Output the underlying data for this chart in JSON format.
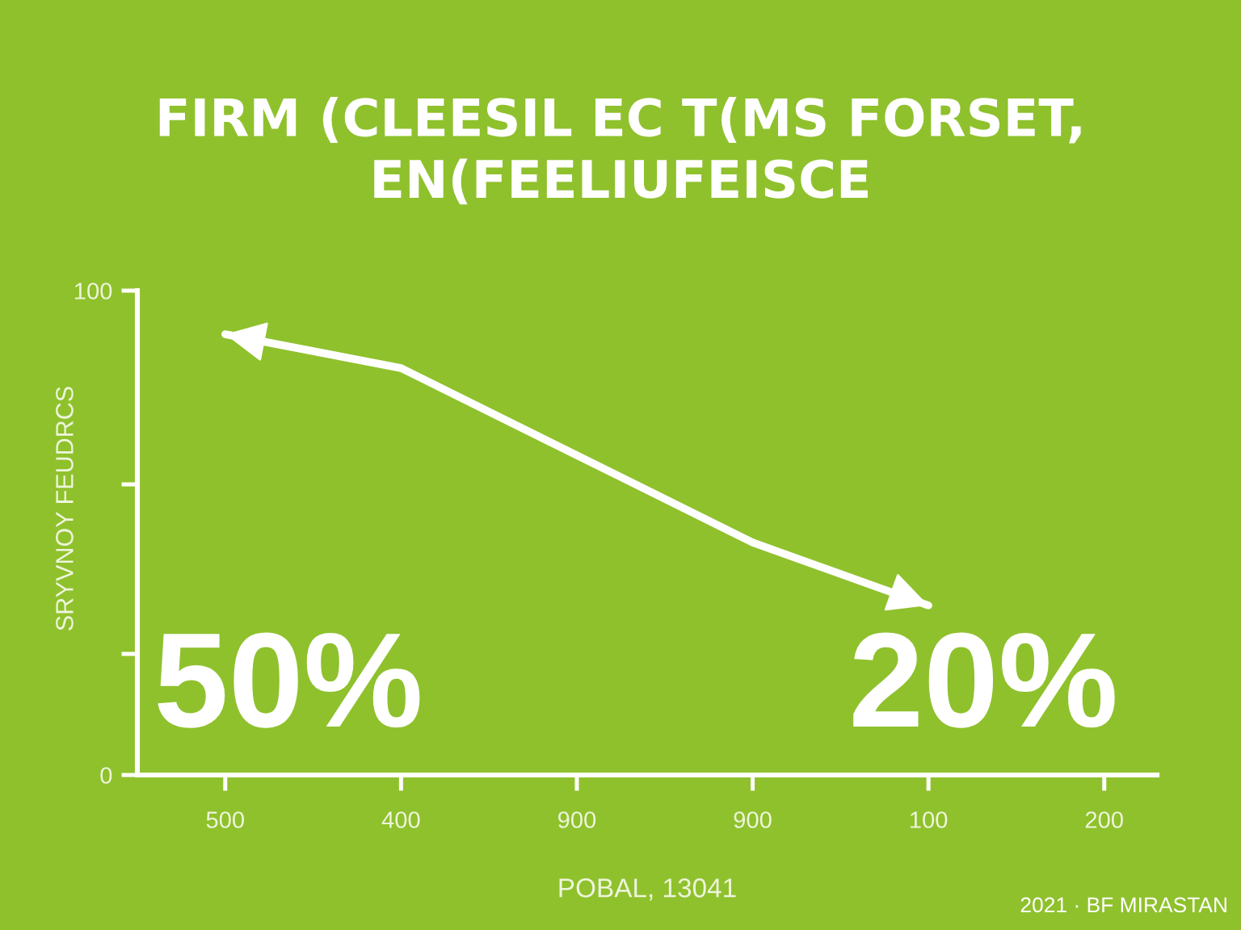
{
  "chart_data": {
    "type": "line",
    "title": "FIRM (CLEESIL EC T(MS FORSET,\nEN(FEELIUFEISCE",
    "xlabel": "POBAL, 13041",
    "ylabel": "SRYVNOY FEUDRCS",
    "categories": [
      "500",
      "400",
      "900",
      "900",
      "100",
      "200"
    ],
    "series": [
      {
        "color": "#ffffff",
        "values": [
          91,
          84,
          66,
          48,
          35,
          null
        ]
      }
    ],
    "ylim": [
      0,
      100
    ],
    "yticks": [
      0,
      {
        "value": 25,
        "label": null
      },
      {
        "value": 60,
        "label": null
      },
      100
    ],
    "line_style": "solid",
    "annotations": [
      "50%",
      "20%",
      "2021 · BF MIRASTAN"
    ]
  }
}
